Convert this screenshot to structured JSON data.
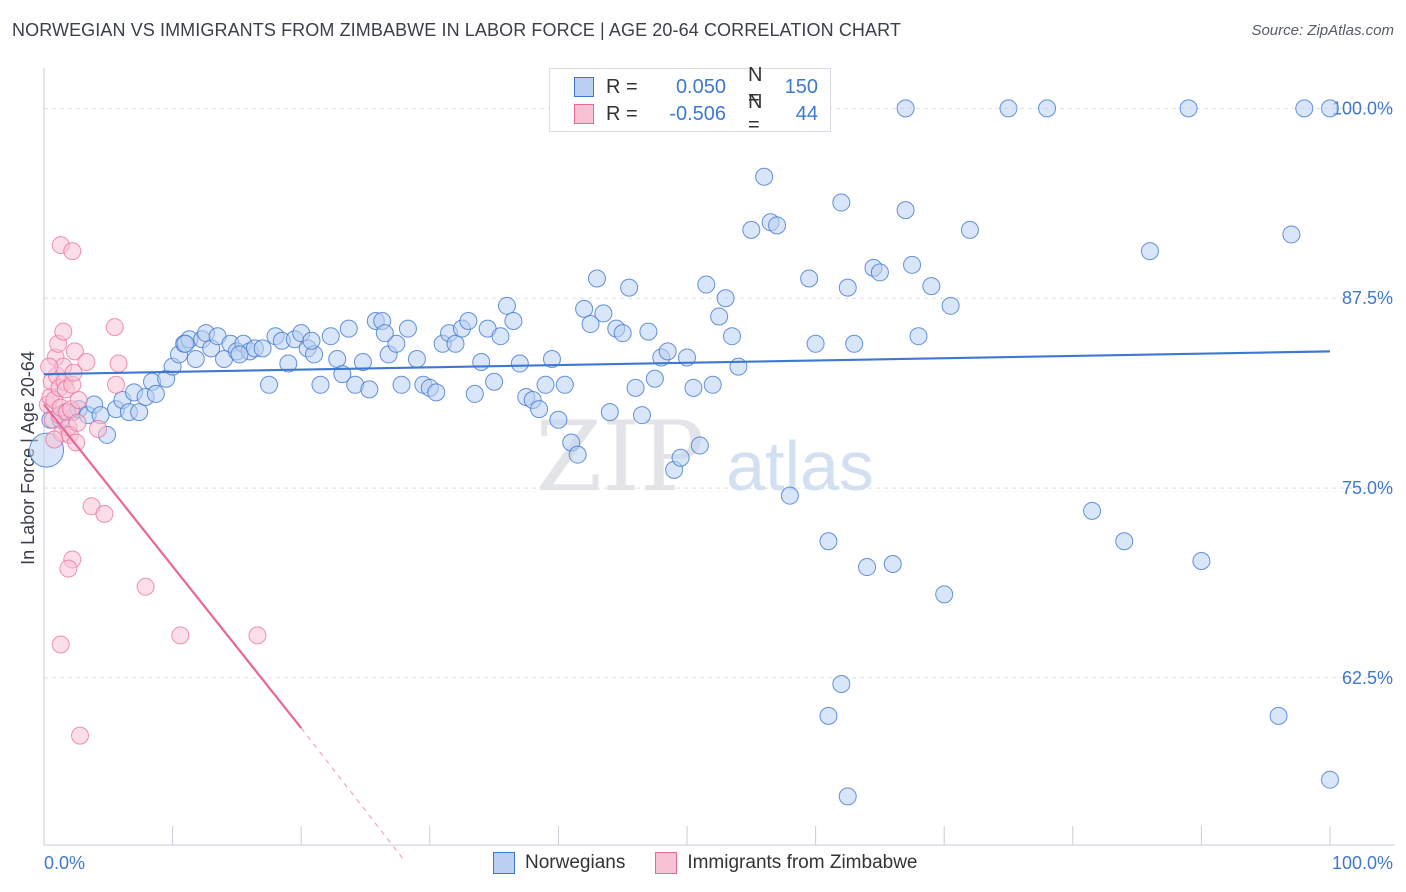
{
  "title": "NORWEGIAN VS IMMIGRANTS FROM ZIMBABWE IN LABOR FORCE | AGE 20-64 CORRELATION CHART",
  "source": "Source: ZipAtlas.com",
  "watermark": {
    "zip": "ZIP",
    "atlas": "atlas"
  },
  "colors": {
    "blue": "#3f78d0",
    "blue_fill": "#b9d0f2",
    "pink": "#e8679a",
    "pink_fill": "#f7c2d4",
    "grid": "#d9dde4"
  },
  "legend": {
    "rows": [
      {
        "r_label": "R =",
        "r_value": "0.050",
        "n_label": "N =",
        "n_value": "150"
      },
      {
        "r_label": "R =",
        "r_value": "-0.506",
        "n_label": "N =",
        "n_value": "44"
      }
    ]
  },
  "bottom_legend": {
    "series1": "Norwegians",
    "series2": "Immigrants from Zimbabwe"
  },
  "chart_data": {
    "type": "scatter",
    "title": "NORWEGIAN VS IMMIGRANTS FROM ZIMBABWE IN LABOR FORCE | AGE 20-64 CORRELATION CHART",
    "ylabel": "In Labor Force | Age 20-64",
    "xlabel": "",
    "xlim": [
      0,
      100
    ],
    "ylim": [
      51.5,
      102
    ],
    "x_tick_labels": [
      "0.0%",
      "100.0%"
    ],
    "y_ticks": [
      62.5,
      75.0,
      87.5,
      100.0
    ],
    "y_tick_labels": [
      "62.5%",
      "75.0%",
      "87.5%",
      "100.0%"
    ],
    "grid": "horizontal dashed",
    "series": [
      {
        "name": "Norwegians",
        "color": "#3f78d0",
        "trend": {
          "x": [
            0,
            100
          ],
          "y": [
            82.5,
            84.0
          ]
        },
        "points": [
          [
            0.2,
            77.5
          ],
          [
            0.5,
            79.5
          ],
          [
            1.3,
            79.5
          ],
          [
            1.7,
            80.0
          ],
          [
            2.2,
            80.0
          ],
          [
            2.7,
            80.2
          ],
          [
            3.4,
            79.8
          ],
          [
            3.9,
            80.5
          ],
          [
            4.4,
            79.8
          ],
          [
            4.9,
            78.5
          ],
          [
            5.6,
            80.2
          ],
          [
            6.1,
            80.8
          ],
          [
            6.6,
            80.0
          ],
          [
            7.0,
            81.3
          ],
          [
            7.4,
            80.0
          ],
          [
            7.9,
            81.0
          ],
          [
            8.4,
            82.0
          ],
          [
            8.7,
            81.2
          ],
          [
            9.5,
            82.2
          ],
          [
            10.0,
            83.0
          ],
          [
            10.5,
            83.8
          ],
          [
            10.9,
            84.5
          ],
          [
            11.3,
            84.8
          ],
          [
            11.8,
            83.5
          ],
          [
            12.3,
            84.8
          ],
          [
            12.6,
            85.2
          ],
          [
            13.0,
            84.2
          ],
          [
            13.5,
            85.0
          ],
          [
            14.0,
            83.5
          ],
          [
            14.5,
            84.5
          ],
          [
            15.0,
            84.0
          ],
          [
            15.5,
            84.5
          ],
          [
            16.0,
            84.0
          ],
          [
            16.4,
            84.2
          ],
          [
            17.0,
            84.2
          ],
          [
            17.5,
            81.8
          ],
          [
            18.0,
            85.0
          ],
          [
            18.5,
            84.7
          ],
          [
            19.0,
            83.2
          ],
          [
            19.5,
            84.8
          ],
          [
            20.0,
            85.2
          ],
          [
            20.5,
            84.2
          ],
          [
            21.0,
            83.8
          ],
          [
            21.5,
            81.8
          ],
          [
            22.3,
            85.0
          ],
          [
            22.8,
            83.5
          ],
          [
            23.2,
            82.5
          ],
          [
            23.7,
            85.5
          ],
          [
            24.2,
            81.8
          ],
          [
            24.8,
            83.3
          ],
          [
            25.3,
            81.5
          ],
          [
            25.8,
            86.0
          ],
          [
            26.3,
            86.0
          ],
          [
            26.8,
            83.8
          ],
          [
            27.4,
            84.5
          ],
          [
            27.8,
            81.8
          ],
          [
            28.3,
            85.5
          ],
          [
            29.0,
            83.5
          ],
          [
            29.5,
            81.8
          ],
          [
            30.0,
            81.6
          ],
          [
            30.5,
            81.3
          ],
          [
            31.0,
            84.5
          ],
          [
            31.5,
            85.2
          ],
          [
            32.0,
            84.5
          ],
          [
            32.5,
            85.5
          ],
          [
            33.0,
            86.0
          ],
          [
            33.5,
            81.2
          ],
          [
            34.0,
            83.3
          ],
          [
            34.5,
            85.5
          ],
          [
            35.0,
            82.0
          ],
          [
            35.5,
            85.0
          ],
          [
            36.0,
            87.0
          ],
          [
            36.5,
            86.0
          ],
          [
            37.0,
            83.2
          ],
          [
            37.5,
            81.0
          ],
          [
            38.0,
            80.8
          ],
          [
            38.5,
            80.2
          ],
          [
            39.0,
            81.8
          ],
          [
            39.5,
            83.5
          ],
          [
            40.0,
            79.5
          ],
          [
            40.5,
            81.8
          ],
          [
            41.0,
            78.0
          ],
          [
            41.5,
            77.2
          ],
          [
            42.0,
            86.8
          ],
          [
            42.5,
            85.8
          ],
          [
            43.0,
            88.8
          ],
          [
            43.5,
            86.5
          ],
          [
            44.0,
            80.0
          ],
          [
            44.5,
            85.5
          ],
          [
            45.0,
            85.2
          ],
          [
            45.5,
            88.2
          ],
          [
            46.0,
            81.6
          ],
          [
            46.5,
            79.8
          ],
          [
            47.0,
            85.3
          ],
          [
            47.5,
            82.2
          ],
          [
            48.0,
            83.6
          ],
          [
            48.5,
            84.0
          ],
          [
            49.0,
            76.2
          ],
          [
            49.5,
            77.0
          ],
          [
            50.0,
            83.6
          ],
          [
            50.5,
            81.6
          ],
          [
            51.0,
            77.8
          ],
          [
            51.5,
            88.4
          ],
          [
            52.0,
            81.8
          ],
          [
            52.5,
            86.3
          ],
          [
            53.0,
            87.5
          ],
          [
            53.5,
            85.0
          ],
          [
            54.0,
            83.0
          ],
          [
            55.0,
            92.0
          ],
          [
            56.0,
            95.5
          ],
          [
            56.5,
            92.5
          ],
          [
            57.0,
            92.3
          ],
          [
            58.0,
            74.5
          ],
          [
            59.5,
            88.8
          ],
          [
            60.0,
            84.5
          ],
          [
            61.0,
            71.5
          ],
          [
            62.0,
            93.8
          ],
          [
            62.5,
            88.2
          ],
          [
            63.0,
            84.5
          ],
          [
            64.0,
            69.8
          ],
          [
            64.5,
            89.5
          ],
          [
            65.0,
            89.2
          ],
          [
            66.0,
            70.0
          ],
          [
            67.0,
            93.3
          ],
          [
            67.5,
            89.7
          ],
          [
            68.0,
            85.0
          ],
          [
            69.0,
            88.3
          ],
          [
            70.0,
            68.0
          ],
          [
            70.5,
            87.0
          ],
          [
            75.0,
            100.0
          ],
          [
            72.0,
            92.0
          ],
          [
            78.0,
            100.0
          ],
          [
            81.5,
            73.5
          ],
          [
            84.0,
            71.5
          ],
          [
            86.0,
            90.6
          ],
          [
            89.0,
            100.0
          ],
          [
            90.0,
            70.2
          ],
          [
            96.0,
            60.0
          ],
          [
            97.0,
            91.7
          ],
          [
            100.0,
            55.8
          ],
          [
            100.0,
            100.0
          ],
          [
            61.0,
            60.0
          ],
          [
            62.0,
            62.1
          ],
          [
            62.5,
            54.7
          ],
          [
            67.0,
            100.0
          ],
          [
            11.0,
            84.5
          ],
          [
            15.2,
            83.8
          ],
          [
            20.8,
            84.7
          ],
          [
            26.5,
            85.2
          ],
          [
            98.0,
            100.0
          ]
        ]
      },
      {
        "name": "Immigrants from Zimbabwe",
        "color": "#e8679a",
        "trend": {
          "x": [
            0,
            20.0
          ],
          "y": [
            80.5,
            59.2
          ]
        },
        "trend_dashed": {
          "x": [
            20.0,
            28.0
          ],
          "y": [
            59.2,
            50.5
          ]
        },
        "points": [
          [
            0.3,
            80.5
          ],
          [
            0.5,
            81.0
          ],
          [
            0.6,
            82.0
          ],
          [
            0.7,
            79.5
          ],
          [
            0.8,
            80.8
          ],
          [
            0.9,
            83.6
          ],
          [
            1.0,
            82.4
          ],
          [
            1.1,
            84.5
          ],
          [
            1.2,
            81.6
          ],
          [
            1.2,
            79.8
          ],
          [
            1.3,
            80.3
          ],
          [
            1.4,
            78.6
          ],
          [
            1.5,
            83.0
          ],
          [
            1.5,
            85.3
          ],
          [
            1.6,
            82.0
          ],
          [
            1.7,
            81.5
          ],
          [
            1.8,
            80.0
          ],
          [
            1.9,
            79.0
          ],
          [
            2.0,
            78.5
          ],
          [
            2.1,
            80.2
          ],
          [
            2.2,
            81.8
          ],
          [
            2.3,
            82.6
          ],
          [
            2.4,
            84.0
          ],
          [
            2.5,
            78.0
          ],
          [
            2.6,
            79.3
          ],
          [
            2.7,
            80.8
          ],
          [
            0.8,
            78.2
          ],
          [
            1.3,
            91.0
          ],
          [
            2.2,
            90.6
          ],
          [
            5.5,
            85.6
          ],
          [
            4.2,
            78.9
          ],
          [
            3.7,
            73.8
          ],
          [
            4.7,
            73.3
          ],
          [
            5.8,
            83.2
          ],
          [
            5.6,
            81.8
          ],
          [
            1.3,
            64.7
          ],
          [
            2.2,
            70.3
          ],
          [
            1.9,
            69.7
          ],
          [
            7.9,
            68.5
          ],
          [
            10.6,
            65.3
          ],
          [
            16.6,
            65.3
          ],
          [
            2.8,
            58.7
          ],
          [
            3.3,
            83.3
          ],
          [
            0.4,
            83.0
          ]
        ]
      }
    ]
  }
}
